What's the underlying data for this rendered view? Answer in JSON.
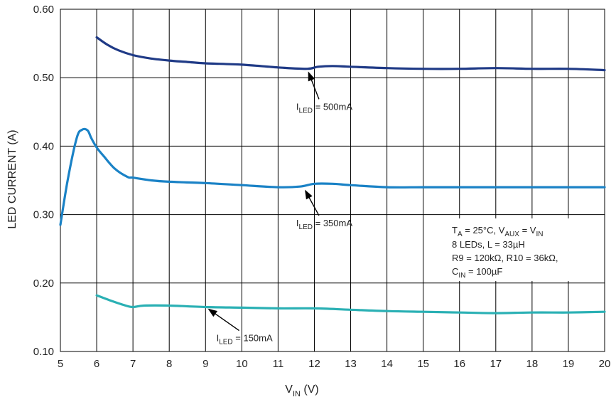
{
  "chart_data": {
    "type": "line",
    "xlabel": {
      "main": "V",
      "sub": "IN",
      "unit": " (V)"
    },
    "ylabel": "LED CURRENT (A)",
    "xlim": [
      5,
      20
    ],
    "ylim": [
      0.1,
      0.6
    ],
    "x_ticks": [
      "5",
      "6",
      "7",
      "8",
      "9",
      "10",
      "11",
      "12",
      "13",
      "14",
      "15",
      "16",
      "17",
      "18",
      "19",
      "20"
    ],
    "y_ticks": [
      "0.10",
      "0.20",
      "0.30",
      "0.40",
      "0.50",
      "0.60"
    ],
    "grid": true,
    "series": [
      {
        "name": "ILED = 500mA",
        "color": "#1f3a86",
        "points": [
          [
            6.0,
            0.559
          ],
          [
            6.3,
            0.548
          ],
          [
            6.6,
            0.54
          ],
          [
            7.0,
            0.533
          ],
          [
            7.5,
            0.528
          ],
          [
            8.0,
            0.525
          ],
          [
            8.5,
            0.523
          ],
          [
            9.0,
            0.521
          ],
          [
            10.0,
            0.519
          ],
          [
            11.0,
            0.515
          ],
          [
            11.8,
            0.513
          ],
          [
            12.1,
            0.516
          ],
          [
            12.5,
            0.517
          ],
          [
            13.0,
            0.516
          ],
          [
            14.0,
            0.514
          ],
          [
            15.0,
            0.513
          ],
          [
            16.0,
            0.513
          ],
          [
            17.0,
            0.514
          ],
          [
            18.0,
            0.513
          ],
          [
            19.0,
            0.513
          ],
          [
            20.0,
            0.511
          ]
        ]
      },
      {
        "name": "ILED = 350mA",
        "color": "#1a82c6",
        "points": [
          [
            5.0,
            0.285
          ],
          [
            5.2,
            0.35
          ],
          [
            5.45,
            0.412
          ],
          [
            5.6,
            0.424
          ],
          [
            5.75,
            0.423
          ],
          [
            5.85,
            0.412
          ],
          [
            6.0,
            0.398
          ],
          [
            6.2,
            0.385
          ],
          [
            6.5,
            0.367
          ],
          [
            6.85,
            0.355
          ],
          [
            7.0,
            0.354
          ],
          [
            7.5,
            0.35
          ],
          [
            8.0,
            0.348
          ],
          [
            9.0,
            0.346
          ],
          [
            10.0,
            0.343
          ],
          [
            11.0,
            0.34
          ],
          [
            11.6,
            0.341
          ],
          [
            12.0,
            0.345
          ],
          [
            12.5,
            0.345
          ],
          [
            13.0,
            0.343
          ],
          [
            14.0,
            0.34
          ],
          [
            15.0,
            0.34
          ],
          [
            16.0,
            0.34
          ],
          [
            17.0,
            0.34
          ],
          [
            18.0,
            0.34
          ],
          [
            19.0,
            0.34
          ],
          [
            20.0,
            0.34
          ]
        ]
      },
      {
        "name": "ILED = 150mA",
        "color": "#2ab0b4",
        "points": [
          [
            6.0,
            0.182
          ],
          [
            6.4,
            0.174
          ],
          [
            6.8,
            0.167
          ],
          [
            7.0,
            0.165
          ],
          [
            7.3,
            0.167
          ],
          [
            8.0,
            0.167
          ],
          [
            9.0,
            0.165
          ],
          [
            10.0,
            0.164
          ],
          [
            11.0,
            0.163
          ],
          [
            12.0,
            0.163
          ],
          [
            13.0,
            0.161
          ],
          [
            14.0,
            0.159
          ],
          [
            15.0,
            0.158
          ],
          [
            16.0,
            0.157
          ],
          [
            17.0,
            0.156
          ],
          [
            18.0,
            0.157
          ],
          [
            19.0,
            0.157
          ],
          [
            20.0,
            0.158
          ]
        ]
      }
    ],
    "annotations": [
      {
        "id": "a500",
        "main": "I",
        "sub": "LED",
        "rest": " = 500mA",
        "point": [
          11.8,
          0.513
        ],
        "text_pos": [
          11.5,
          0.453
        ]
      },
      {
        "id": "a350",
        "main": "I",
        "sub": "LED",
        "rest": " = 350mA",
        "point": [
          11.7,
          0.34
        ],
        "text_pos": [
          11.5,
          0.283
        ]
      },
      {
        "id": "a150",
        "main": "I",
        "sub": "LED",
        "rest": " = 150mA",
        "point": [
          9.0,
          0.165
        ],
        "text_pos": [
          9.3,
          0.115
        ]
      }
    ],
    "conditions_box": {
      "line1": {
        "a": "T",
        "a_sub": "A",
        "b": " = 25°C, V",
        "b_sub": "AUX",
        "c": " = V",
        "c_sub": "IN"
      },
      "line2": "8 LEDs, L = 33µH",
      "line3": "R9 = 120kΩ, R10 = 36kΩ,",
      "line4": {
        "a": "C",
        "a_sub": "IN",
        "b": " = 100µF"
      }
    }
  }
}
